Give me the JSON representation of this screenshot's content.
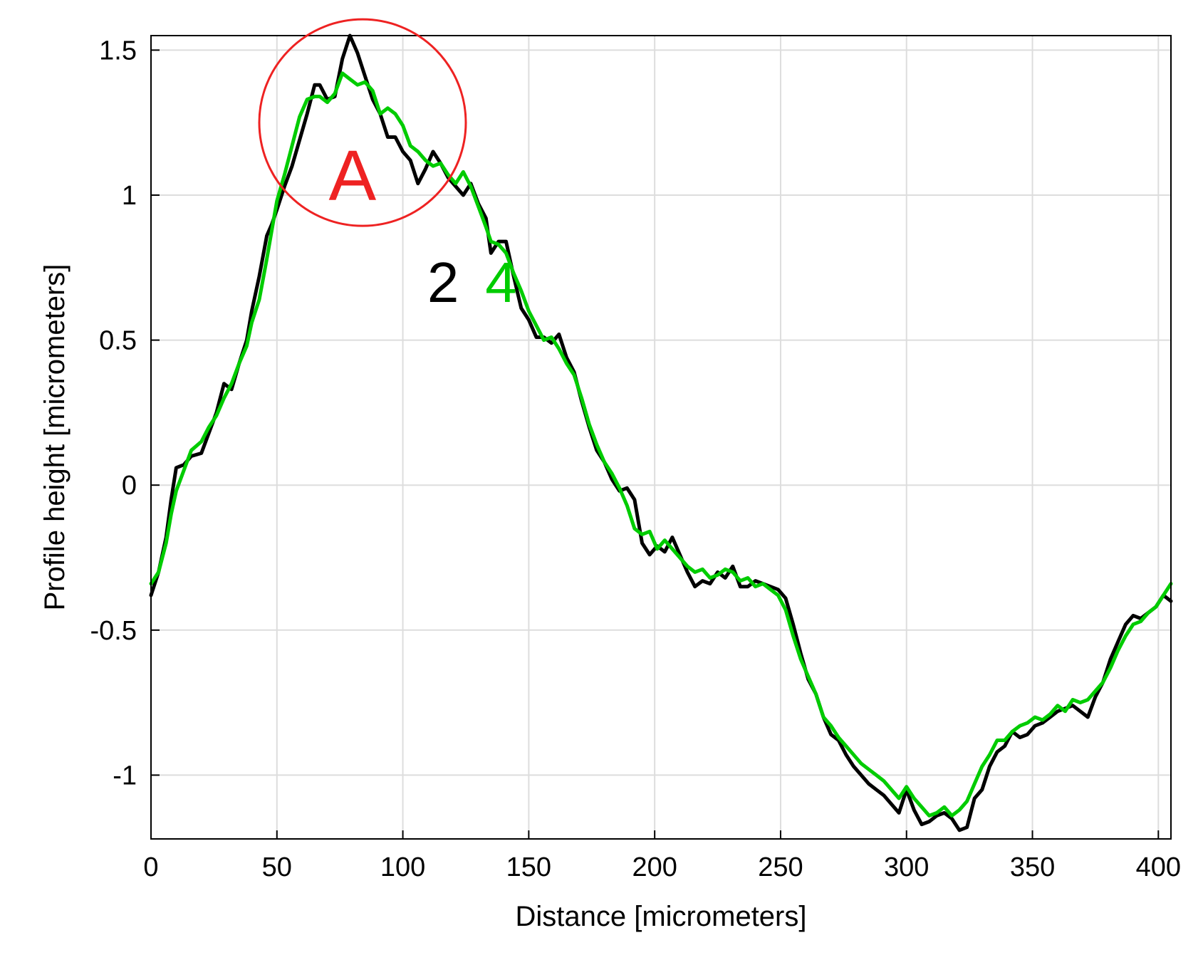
{
  "chart_data": {
    "type": "line",
    "xlabel": "Distance [micrometers]",
    "ylabel": "Profile height [micrometers]",
    "xlim": [
      0,
      405
    ],
    "ylim": [
      -1.22,
      1.55
    ],
    "x_ticks": [
      0,
      50,
      100,
      150,
      200,
      250,
      300,
      350,
      400
    ],
    "y_ticks": [
      -1,
      -0.5,
      0,
      0.5,
      1,
      1.5
    ],
    "x_tick_labels": [
      "0",
      "50",
      "100",
      "150",
      "200",
      "250",
      "300",
      "350",
      "400"
    ],
    "y_tick_labels": [
      "-1",
      "-0.5",
      "0",
      "0.5",
      "1",
      "1.5"
    ],
    "grid": true,
    "series": [
      {
        "name": "2",
        "color": "#000000",
        "points": [
          [
            0,
            -0.38
          ],
          [
            3,
            -0.3
          ],
          [
            6,
            -0.18
          ],
          [
            8,
            -0.05
          ],
          [
            10,
            0.06
          ],
          [
            13,
            0.07
          ],
          [
            16,
            0.1
          ],
          [
            20,
            0.11
          ],
          [
            23,
            0.18
          ],
          [
            26,
            0.25
          ],
          [
            29,
            0.35
          ],
          [
            32,
            0.33
          ],
          [
            35,
            0.42
          ],
          [
            38,
            0.5
          ],
          [
            40,
            0.6
          ],
          [
            43,
            0.72
          ],
          [
            46,
            0.86
          ],
          [
            48,
            0.9
          ],
          [
            50,
            0.95
          ],
          [
            53,
            1.03
          ],
          [
            56,
            1.1
          ],
          [
            59,
            1.19
          ],
          [
            62,
            1.28
          ],
          [
            65,
            1.38
          ],
          [
            67,
            1.38
          ],
          [
            70,
            1.33
          ],
          [
            73,
            1.34
          ],
          [
            76,
            1.47
          ],
          [
            79,
            1.55
          ],
          [
            82,
            1.49
          ],
          [
            85,
            1.41
          ],
          [
            88,
            1.33
          ],
          [
            91,
            1.28
          ],
          [
            94,
            1.2
          ],
          [
            97,
            1.2
          ],
          [
            100,
            1.15
          ],
          [
            103,
            1.12
          ],
          [
            106,
            1.04
          ],
          [
            109,
            1.09
          ],
          [
            112,
            1.15
          ],
          [
            115,
            1.11
          ],
          [
            118,
            1.06
          ],
          [
            121,
            1.03
          ],
          [
            124,
            1.0
          ],
          [
            127,
            1.04
          ],
          [
            130,
            0.97
          ],
          [
            133,
            0.92
          ],
          [
            135,
            0.8
          ],
          [
            138,
            0.84
          ],
          [
            141,
            0.84
          ],
          [
            144,
            0.72
          ],
          [
            147,
            0.61
          ],
          [
            150,
            0.57
          ],
          [
            153,
            0.51
          ],
          [
            156,
            0.51
          ],
          [
            159,
            0.49
          ],
          [
            162,
            0.52
          ],
          [
            165,
            0.44
          ],
          [
            168,
            0.39
          ],
          [
            171,
            0.29
          ],
          [
            174,
            0.2
          ],
          [
            177,
            0.12
          ],
          [
            180,
            0.08
          ],
          [
            183,
            0.02
          ],
          [
            186,
            -0.02
          ],
          [
            189,
            -0.01
          ],
          [
            192,
            -0.05
          ],
          [
            195,
            -0.2
          ],
          [
            198,
            -0.24
          ],
          [
            201,
            -0.21
          ],
          [
            204,
            -0.23
          ],
          [
            207,
            -0.18
          ],
          [
            210,
            -0.24
          ],
          [
            213,
            -0.3
          ],
          [
            216,
            -0.35
          ],
          [
            219,
            -0.33
          ],
          [
            222,
            -0.34
          ],
          [
            225,
            -0.3
          ],
          [
            228,
            -0.32
          ],
          [
            231,
            -0.28
          ],
          [
            234,
            -0.35
          ],
          [
            237,
            -0.35
          ],
          [
            240,
            -0.33
          ],
          [
            243,
            -0.34
          ],
          [
            246,
            -0.35
          ],
          [
            249,
            -0.36
          ],
          [
            252,
            -0.39
          ],
          [
            255,
            -0.48
          ],
          [
            258,
            -0.58
          ],
          [
            261,
            -0.67
          ],
          [
            264,
            -0.72
          ],
          [
            267,
            -0.8
          ],
          [
            270,
            -0.86
          ],
          [
            273,
            -0.88
          ],
          [
            276,
            -0.93
          ],
          [
            279,
            -0.97
          ],
          [
            282,
            -1.0
          ],
          [
            285,
            -1.03
          ],
          [
            288,
            -1.05
          ],
          [
            291,
            -1.07
          ],
          [
            294,
            -1.1
          ],
          [
            297,
            -1.13
          ],
          [
            300,
            -1.05
          ],
          [
            303,
            -1.12
          ],
          [
            306,
            -1.17
          ],
          [
            309,
            -1.16
          ],
          [
            312,
            -1.14
          ],
          [
            315,
            -1.13
          ],
          [
            318,
            -1.15
          ],
          [
            321,
            -1.19
          ],
          [
            324,
            -1.18
          ],
          [
            327,
            -1.08
          ],
          [
            330,
            -1.05
          ],
          [
            333,
            -0.97
          ],
          [
            336,
            -0.92
          ],
          [
            339,
            -0.9
          ],
          [
            342,
            -0.85
          ],
          [
            345,
            -0.87
          ],
          [
            348,
            -0.86
          ],
          [
            351,
            -0.83
          ],
          [
            354,
            -0.82
          ],
          [
            357,
            -0.8
          ],
          [
            360,
            -0.78
          ],
          [
            363,
            -0.77
          ],
          [
            366,
            -0.76
          ],
          [
            369,
            -0.78
          ],
          [
            372,
            -0.8
          ],
          [
            375,
            -0.73
          ],
          [
            378,
            -0.68
          ],
          [
            381,
            -0.6
          ],
          [
            384,
            -0.54
          ],
          [
            387,
            -0.48
          ],
          [
            390,
            -0.45
          ],
          [
            393,
            -0.46
          ],
          [
            396,
            -0.44
          ],
          [
            399,
            -0.42
          ],
          [
            402,
            -0.38
          ],
          [
            405,
            -0.4
          ]
        ]
      },
      {
        "name": "4",
        "color": "#00cc00",
        "points": [
          [
            0,
            -0.34
          ],
          [
            3,
            -0.3
          ],
          [
            6,
            -0.2
          ],
          [
            8,
            -0.1
          ],
          [
            10,
            -0.02
          ],
          [
            13,
            0.05
          ],
          [
            16,
            0.12
          ],
          [
            20,
            0.15
          ],
          [
            23,
            0.2
          ],
          [
            26,
            0.24
          ],
          [
            29,
            0.3
          ],
          [
            32,
            0.35
          ],
          [
            35,
            0.42
          ],
          [
            38,
            0.48
          ],
          [
            40,
            0.56
          ],
          [
            43,
            0.64
          ],
          [
            46,
            0.78
          ],
          [
            48,
            0.88
          ],
          [
            50,
            0.98
          ],
          [
            53,
            1.07
          ],
          [
            56,
            1.17
          ],
          [
            59,
            1.27
          ],
          [
            62,
            1.33
          ],
          [
            65,
            1.34
          ],
          [
            67,
            1.34
          ],
          [
            70,
            1.32
          ],
          [
            73,
            1.35
          ],
          [
            76,
            1.42
          ],
          [
            79,
            1.4
          ],
          [
            82,
            1.38
          ],
          [
            85,
            1.39
          ],
          [
            88,
            1.36
          ],
          [
            91,
            1.28
          ],
          [
            94,
            1.3
          ],
          [
            97,
            1.28
          ],
          [
            100,
            1.24
          ],
          [
            103,
            1.17
          ],
          [
            106,
            1.15
          ],
          [
            109,
            1.12
          ],
          [
            112,
            1.1
          ],
          [
            115,
            1.11
          ],
          [
            118,
            1.07
          ],
          [
            121,
            1.04
          ],
          [
            124,
            1.08
          ],
          [
            127,
            1.03
          ],
          [
            130,
            0.96
          ],
          [
            133,
            0.89
          ],
          [
            135,
            0.84
          ],
          [
            138,
            0.83
          ],
          [
            141,
            0.8
          ],
          [
            144,
            0.73
          ],
          [
            147,
            0.67
          ],
          [
            150,
            0.6
          ],
          [
            153,
            0.55
          ],
          [
            156,
            0.5
          ],
          [
            159,
            0.51
          ],
          [
            162,
            0.47
          ],
          [
            165,
            0.42
          ],
          [
            168,
            0.38
          ],
          [
            171,
            0.3
          ],
          [
            174,
            0.21
          ],
          [
            177,
            0.14
          ],
          [
            180,
            0.08
          ],
          [
            183,
            0.04
          ],
          [
            186,
            -0.01
          ],
          [
            189,
            -0.07
          ],
          [
            192,
            -0.15
          ],
          [
            195,
            -0.17
          ],
          [
            198,
            -0.16
          ],
          [
            201,
            -0.22
          ],
          [
            204,
            -0.19
          ],
          [
            207,
            -0.22
          ],
          [
            210,
            -0.25
          ],
          [
            213,
            -0.28
          ],
          [
            216,
            -0.3
          ],
          [
            219,
            -0.29
          ],
          [
            222,
            -0.32
          ],
          [
            225,
            -0.31
          ],
          [
            228,
            -0.29
          ],
          [
            231,
            -0.3
          ],
          [
            234,
            -0.33
          ],
          [
            237,
            -0.32
          ],
          [
            240,
            -0.35
          ],
          [
            243,
            -0.34
          ],
          [
            246,
            -0.36
          ],
          [
            249,
            -0.38
          ],
          [
            252,
            -0.43
          ],
          [
            255,
            -0.52
          ],
          [
            258,
            -0.6
          ],
          [
            261,
            -0.66
          ],
          [
            264,
            -0.72
          ],
          [
            267,
            -0.8
          ],
          [
            270,
            -0.83
          ],
          [
            273,
            -0.87
          ],
          [
            276,
            -0.9
          ],
          [
            279,
            -0.93
          ],
          [
            282,
            -0.96
          ],
          [
            285,
            -0.98
          ],
          [
            288,
            -1.0
          ],
          [
            291,
            -1.02
          ],
          [
            294,
            -1.05
          ],
          [
            297,
            -1.08
          ],
          [
            300,
            -1.04
          ],
          [
            303,
            -1.08
          ],
          [
            306,
            -1.11
          ],
          [
            309,
            -1.14
          ],
          [
            312,
            -1.13
          ],
          [
            315,
            -1.11
          ],
          [
            318,
            -1.14
          ],
          [
            321,
            -1.12
          ],
          [
            324,
            -1.09
          ],
          [
            327,
            -1.03
          ],
          [
            330,
            -0.97
          ],
          [
            333,
            -0.93
          ],
          [
            336,
            -0.88
          ],
          [
            339,
            -0.88
          ],
          [
            342,
            -0.85
          ],
          [
            345,
            -0.83
          ],
          [
            348,
            -0.82
          ],
          [
            351,
            -0.8
          ],
          [
            354,
            -0.81
          ],
          [
            357,
            -0.79
          ],
          [
            360,
            -0.76
          ],
          [
            363,
            -0.78
          ],
          [
            366,
            -0.74
          ],
          [
            369,
            -0.75
          ],
          [
            372,
            -0.74
          ],
          [
            375,
            -0.71
          ],
          [
            378,
            -0.68
          ],
          [
            381,
            -0.63
          ],
          [
            384,
            -0.57
          ],
          [
            387,
            -0.52
          ],
          [
            390,
            -0.48
          ],
          [
            393,
            -0.47
          ],
          [
            396,
            -0.44
          ],
          [
            399,
            -0.42
          ],
          [
            402,
            -0.38
          ],
          [
            405,
            -0.34
          ]
        ]
      }
    ],
    "annotations": [
      {
        "text": "2",
        "color": "#000000",
        "x": 116,
        "y": 0.7
      },
      {
        "text": "4",
        "color": "#00cc00",
        "x": 139,
        "y": 0.7
      },
      {
        "text": "A",
        "color": "#ee2222",
        "x": 80,
        "y": 1.07
      }
    ],
    "highlight_circle": {
      "label": "A",
      "color": "#ee2222",
      "center_x": 84,
      "center_y": 1.25
    }
  }
}
